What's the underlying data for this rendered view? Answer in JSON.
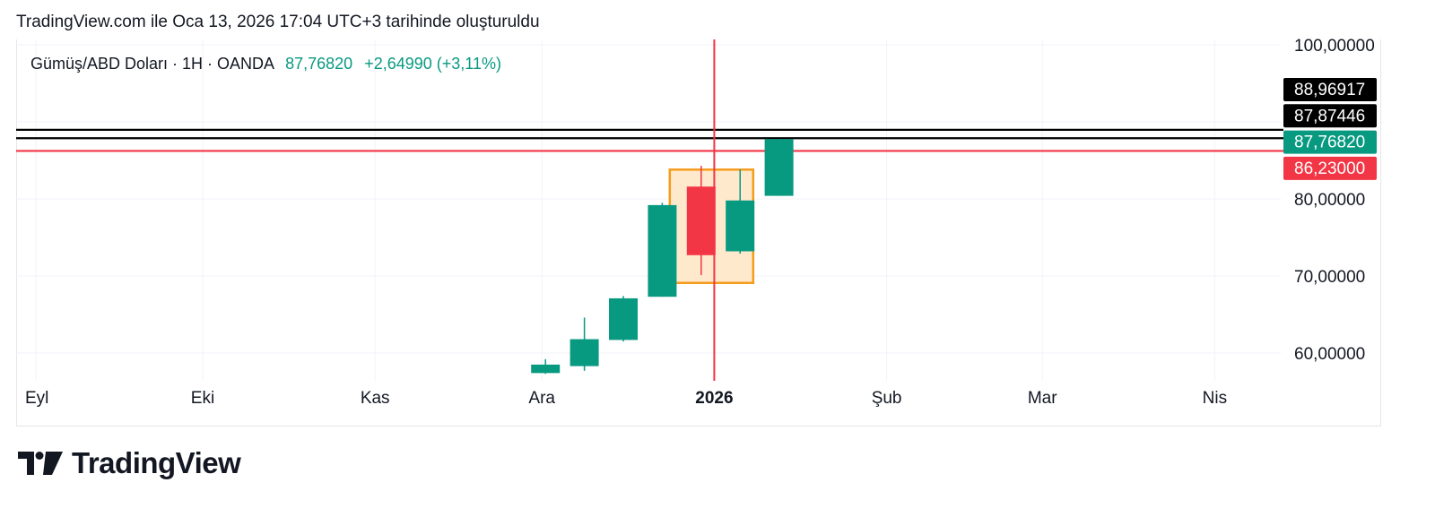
{
  "header": {
    "text": "TradingView.com ile Oca 13, 2026 17:04 UTC+3 tarihinde oluşturuldu"
  },
  "legend": {
    "symbol": "Gümüş/ABD Doları · 1H · OANDA",
    "price": "87,76820",
    "change": "+2,64990 (+3,11%)",
    "up_color": "#089981"
  },
  "logo": {
    "icon": "tradingview-logo-icon",
    "text": "TradingView"
  },
  "colors": {
    "up": "#089981",
    "down": "#f23645",
    "box_stroke": "#f59c1a",
    "box_fill": "#ffe9cc",
    "grid": "#f0f3fa"
  },
  "chart_data": {
    "type": "candlestick",
    "x_tick_labels": [
      "Eyl",
      "Eki",
      "Kas",
      "Ara",
      "2026",
      "Şub",
      "Mar",
      "Nis"
    ],
    "y_tick_labels": [
      "100,00000",
      "80,00000",
      "70,00000",
      "60,00000"
    ],
    "ylim": [
      57,
      101
    ],
    "candles": [
      {
        "label": "2025-12-01",
        "open": 57.4,
        "high": 59.2,
        "low": 57.3,
        "close": 58.5
      },
      {
        "label": "2025-12-08",
        "open": 58.3,
        "high": 64.6,
        "low": 57.7,
        "close": 61.8
      },
      {
        "label": "2025-12-15",
        "open": 61.7,
        "high": 67.4,
        "low": 61.5,
        "close": 67.1
      },
      {
        "label": "2025-12-22",
        "open": 67.3,
        "high": 79.5,
        "low": 67.3,
        "close": 79.2
      },
      {
        "label": "2025-12-29",
        "open": 81.6,
        "high": 84.3,
        "low": 70.1,
        "close": 72.7
      },
      {
        "label": "2026-01-05",
        "open": 73.2,
        "high": 83.8,
        "low": 72.9,
        "close": 79.8
      },
      {
        "label": "2026-01-12",
        "open": 80.4,
        "high": 87.8,
        "low": 80.4,
        "close": 87.7682
      }
    ],
    "horizontal_lines": [
      {
        "value": 88.96917,
        "label": "88,96917",
        "color": "#000000"
      },
      {
        "value": 87.87446,
        "label": "87,87446",
        "color": "#000000"
      },
      {
        "value": 87.7682,
        "label": "87,76820",
        "color": "#089981"
      },
      {
        "value": 86.23,
        "label": "86,23000",
        "color": "#f23645"
      }
    ],
    "vertical_line": {
      "x": "2026-01-01",
      "color": "#f23645"
    },
    "highlight_box": {
      "x_start": "2025-12-24",
      "x_end": "2026-01-08",
      "y_low": 69.1,
      "y_high": 83.8
    },
    "grid": true
  }
}
